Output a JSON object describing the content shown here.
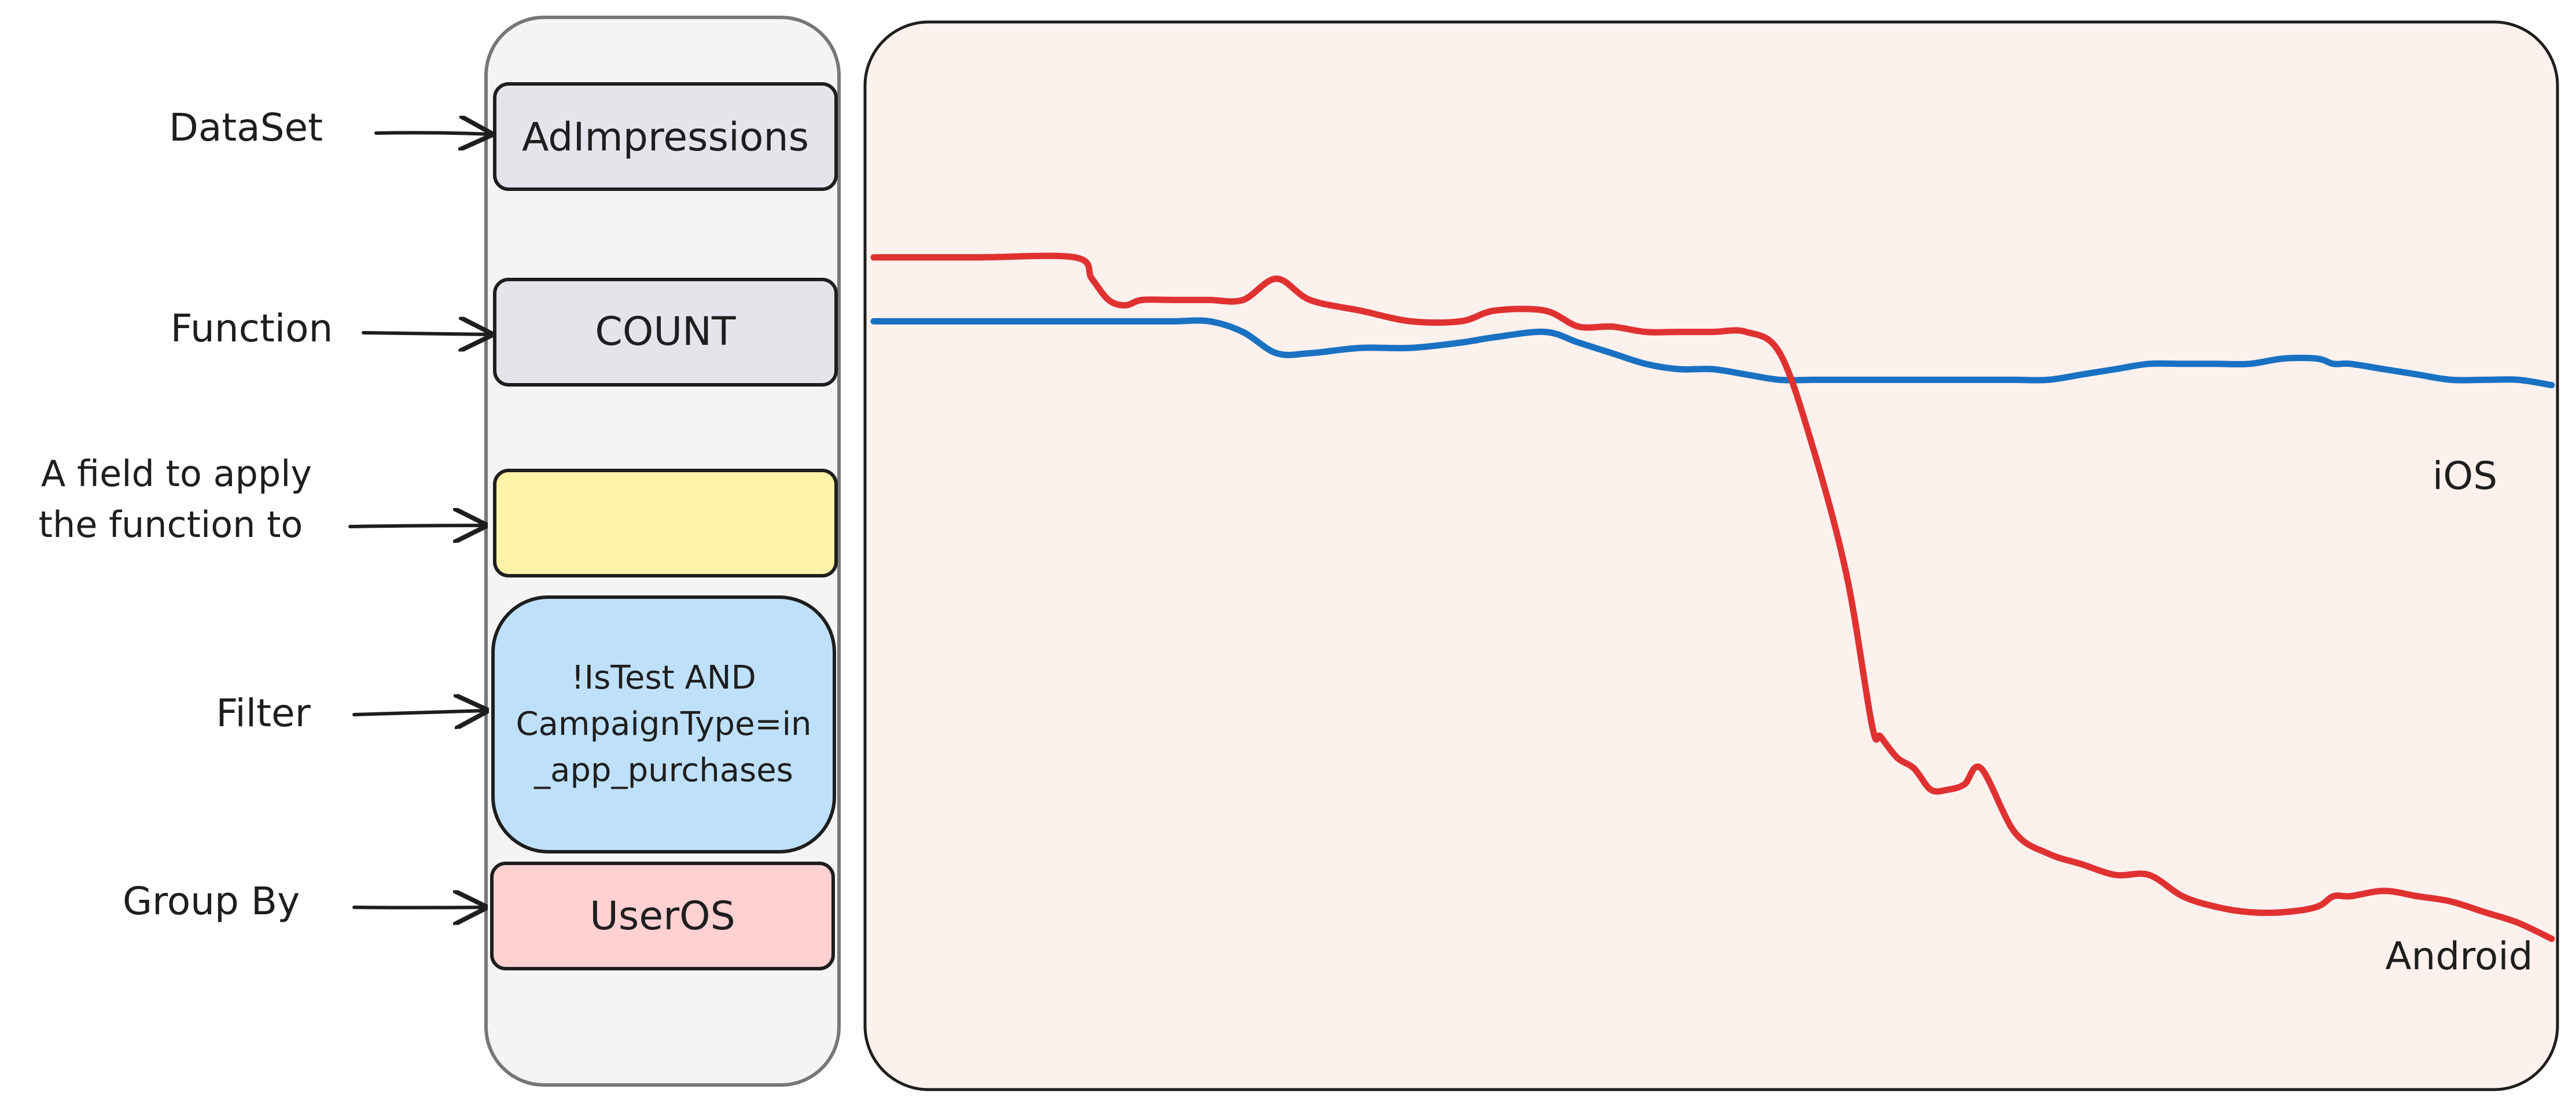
{
  "annotations": {
    "dataset": "DataSet",
    "function": "Function",
    "field_line1": "A field to apply",
    "field_line2": "the function to",
    "filter": "Filter",
    "group_by": "Group By"
  },
  "query_boxes": {
    "dataset_value": "AdImpressions",
    "function_value": "COUNT",
    "field_value": "",
    "filter_line1": "!IsTest AND",
    "filter_line2": "CampaignType=in",
    "filter_line3": "_app_purchases",
    "group_by_value": "UserOS"
  },
  "colors": {
    "stroke": "#1e1e1e",
    "panel_stroke": "#777777",
    "dataset_fill": "#e3e5ea",
    "function_fill": "#e3e5ea",
    "field_fill": "#fff3a8",
    "filter_fill": "#bfe0fa",
    "group_by_fill": "#ffd1d1",
    "chart_fill": "#fdf1ee",
    "android_line": "#e03131",
    "ios_line": "#1971c2"
  },
  "chart_data": {
    "type": "line",
    "x": [
      0,
      6,
      12,
      13,
      14,
      15,
      16,
      18,
      20,
      22,
      24,
      26,
      29,
      32,
      35,
      37,
      40,
      42,
      44,
      46,
      48,
      50,
      52,
      54,
      56,
      58,
      59.5,
      60,
      61,
      62,
      63,
      64,
      65,
      66,
      68,
      70,
      72,
      74,
      76,
      78,
      80,
      82,
      84,
      86,
      87,
      88,
      90,
      92,
      94,
      96,
      98,
      100
    ],
    "series": [
      {
        "name": "Android",
        "color": "#e03131",
        "values": [
          78,
          78,
          78,
          76,
          74,
          73.5,
          74,
          74,
          74,
          74,
          76,
          74,
          73,
          72,
          72,
          73,
          73,
          71.5,
          71.5,
          71,
          71,
          71,
          71,
          69,
          60,
          48,
          34,
          33,
          31,
          30,
          28,
          28,
          28.5,
          30,
          24,
          22,
          21,
          20,
          20,
          18,
          17,
          16.5,
          16.5,
          17,
          18,
          18,
          18.5,
          18,
          17.5,
          16.5,
          15.5,
          14
        ]
      },
      {
        "name": "iOS",
        "color": "#1971c2",
        "values": [
          72,
          72,
          72,
          72,
          72,
          72,
          72,
          72,
          72,
          71,
          69,
          69,
          69.5,
          69.5,
          70,
          70.5,
          71,
          70,
          69,
          68,
          67.5,
          67.5,
          67,
          66.5,
          66.5,
          66.5,
          66.5,
          66.5,
          66.5,
          66.5,
          66.5,
          66.5,
          66.5,
          66.5,
          66.5,
          66.5,
          67,
          67.5,
          68,
          68,
          68,
          68,
          68.5,
          68.5,
          68,
          68,
          67.5,
          67,
          66.5,
          66.5,
          66.5,
          66
        ]
      }
    ],
    "xlim": [
      0,
      100
    ],
    "ylim": [
      0,
      100
    ],
    "grid": false,
    "legend": "inline-end"
  }
}
